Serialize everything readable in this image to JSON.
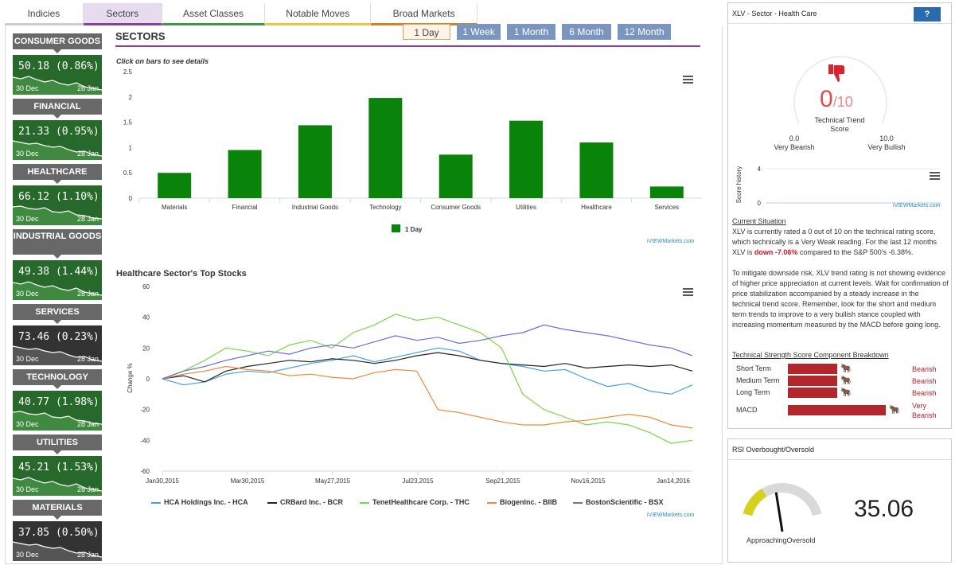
{
  "tabs": [
    {
      "label": "Indicies",
      "color": "#cccccc"
    },
    {
      "label": "Sectors",
      "color": "#8a3fa0"
    },
    {
      "label": "Asset Classes",
      "color": "#3a9a48"
    },
    {
      "label": "Notable Moves",
      "color": "#f0c040"
    },
    {
      "label": "Broad Markets",
      "color": "#e57a1f"
    }
  ],
  "sectors_panel": {
    "title": "SECTORS",
    "periods": [
      "1 Day",
      "1 Week",
      "1 Month",
      "6 Month",
      "12 Month"
    ],
    "active_period": "1 Day",
    "hint": "Click on bars to see details"
  },
  "sidebar": [
    {
      "label": "CONSUMER GOODS",
      "value": "50.18",
      "pct": "(0.86%)",
      "start": "30 Dec",
      "end": "28 Jan",
      "theme": "green"
    },
    {
      "label": "FINANCIAL",
      "value": "21.33",
      "pct": "(0.95%)",
      "start": "30 Dec",
      "end": "28 Jan",
      "theme": "green"
    },
    {
      "label": "HEALTHCARE",
      "value": "66.12",
      "pct": "(1.10%)",
      "start": "30 Dec",
      "end": "28 Jan",
      "theme": "green"
    },
    {
      "label": "INDUSTRIAL GOODS",
      "value": "49.38",
      "pct": "(1.44%)",
      "start": "30 Dec",
      "end": "28 Jan",
      "theme": "green"
    },
    {
      "label": "SERVICES",
      "value": "73.46",
      "pct": "(0.23%)",
      "start": "30 Dec",
      "end": "28 Jan",
      "theme": "dark"
    },
    {
      "label": "TECHNOLOGY",
      "value": "40.77",
      "pct": "(1.98%)",
      "start": "30 Dec",
      "end": "28 Jan",
      "theme": "green"
    },
    {
      "label": "UTILITIES",
      "value": "45.21",
      "pct": "(1.53%)",
      "start": "30 Dec",
      "end": "28 Jan",
      "theme": "green"
    },
    {
      "label": "MATERIALS",
      "value": "37.85",
      "pct": "(0.50%)",
      "start": "30 Dec",
      "end": "28 Jan",
      "theme": "dark"
    }
  ],
  "chart_data": [
    {
      "type": "bar",
      "categories": [
        "Materials",
        "Financial",
        "Industrial Goods",
        "Technology",
        "Consumer Goods",
        "Utilities",
        "Healthcare",
        "Services"
      ],
      "series": [
        {
          "name": "1 Day",
          "values": [
            0.5,
            0.95,
            1.44,
            1.98,
            0.86,
            1.53,
            1.1,
            0.23
          ],
          "color": "#0a830a"
        }
      ],
      "ylim": [
        0,
        2.5
      ],
      "yticks": [
        "0",
        "0.5",
        "1",
        "1.5",
        "2",
        "2.5"
      ],
      "legend": "bottom-center",
      "credit": "iVIEWMarkets.com"
    },
    {
      "type": "line",
      "title": "Healthcare Sector's Top Stocks",
      "ylabel": "Change %",
      "ylim": [
        -60,
        60
      ],
      "yticks": [
        "60",
        "40",
        "20",
        "0",
        "-20",
        "-40",
        "-60"
      ],
      "xticks": [
        "Jan30,2015",
        "Mar30,2015",
        "May27,2015",
        "Jul23,2015",
        "Sep21,2015",
        "Nov16,2015",
        "Jan14,2016"
      ],
      "series": [
        {
          "name": "HCA Holdings Inc. - HCA",
          "color": "#4a9fe0",
          "values": [
            0,
            -4,
            -2,
            3,
            5,
            4,
            7,
            10,
            12,
            15,
            11,
            14,
            17,
            20,
            18,
            12,
            10,
            8,
            5,
            6,
            0,
            -5,
            -3,
            -8,
            -10,
            -4
          ]
        },
        {
          "name": "CRBard Inc. - BCR",
          "color": "#222222",
          "values": [
            0,
            2,
            -2,
            5,
            8,
            10,
            12,
            11,
            13,
            12,
            10,
            12,
            15,
            17,
            15,
            12,
            10,
            9,
            8,
            10,
            7,
            8,
            9,
            8,
            9,
            5
          ]
        },
        {
          "name": "TenetHealthcare Corp. - THC",
          "color": "#7ad84a",
          "values": [
            0,
            5,
            12,
            20,
            18,
            15,
            22,
            25,
            20,
            30,
            35,
            42,
            38,
            40,
            35,
            30,
            20,
            -10,
            -20,
            -25,
            -30,
            -28,
            -30,
            -35,
            -42,
            -40
          ]
        },
        {
          "name": "BiogenInc. - BIIB",
          "color": "#f08a3a",
          "values": [
            0,
            3,
            5,
            8,
            6,
            5,
            2,
            3,
            1,
            0,
            4,
            6,
            5,
            -20,
            -22,
            -25,
            -28,
            -30,
            -30,
            -28,
            -27,
            -25,
            -23,
            -25,
            -30,
            -32
          ]
        },
        {
          "name": "BostonScientific - BSX",
          "color": "#6670d8",
          "values": [
            0,
            5,
            8,
            12,
            15,
            18,
            16,
            20,
            22,
            20,
            24,
            28,
            25,
            27,
            23,
            25,
            28,
            30,
            35,
            32,
            30,
            28,
            25,
            22,
            20,
            15
          ]
        }
      ],
      "legend": "bottom-center",
      "credit": "iVIEWMarkets.com"
    },
    {
      "type": "line",
      "ylabel": "Score history",
      "ylim": [
        0,
        4
      ],
      "yticks": [
        "4",
        "0"
      ],
      "credit": "iVIEWMarkets.com"
    }
  ],
  "score_panel": {
    "title": "XLV - Sector - Health Care",
    "help": "?",
    "score": "0",
    "score_max": "/10",
    "score_label1": "Technical Trend",
    "score_label2": "Score",
    "min_val": "0.0",
    "min_label": "Very Bearish",
    "max_val": "10.0",
    "max_label": "Very Bullish",
    "situation_title": "Current Situation",
    "p1a": "XLV is currently rated a 0 out of 10 on the technical rating score, which technically is a Very Weak reading. For the last 12 months XLV is ",
    "p1b": "down -7.06%",
    "p1c": " compared to the S&P 500's -6.38%.",
    "p2": "To mitigate downside risk, XLV trend rating is not showing evidence of higher price appreciation at current levels. Wait for confirmation of price stabilization accompanied by a steady increase in the technical trend score. Remember, look for the short and medium term trends to improve to a very bullish stance coupled with increasing momentum measured by the MACD before going long.",
    "breakdown_title": "Technical Strength Score Component Breakdown",
    "components": [
      {
        "name": "Short Term",
        "value": "Bearish",
        "level": 0.25
      },
      {
        "name": "Medium Term",
        "value": "Bearish",
        "level": 0.25
      },
      {
        "name": "Long Term",
        "value": "Bearish",
        "level": 0.25
      },
      {
        "name": "MACD",
        "value": "Very Bearish",
        "level": 0.5
      }
    ]
  },
  "rsi_panel": {
    "title": "RSI Overbought/Oversold",
    "value": "35.06",
    "label": "ApproachingOversold",
    "level": 0.35
  }
}
